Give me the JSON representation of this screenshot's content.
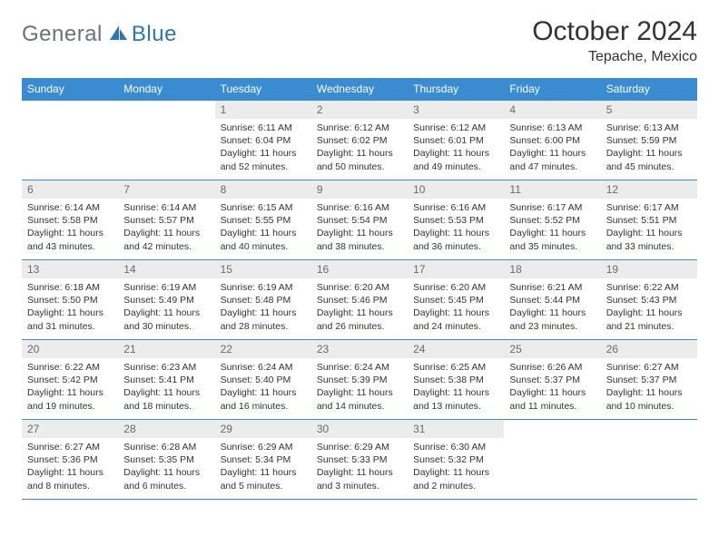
{
  "logo": {
    "word1": "General",
    "word2": "Blue"
  },
  "title": "October 2024",
  "location": "Tepache, Mexico",
  "colors": {
    "header_bg": "#3a8bd0",
    "header_fg": "#ffffff",
    "daynum_bg": "#ececec",
    "daynum_fg": "#6a6a6a",
    "border": "#3a8bd0",
    "logo_gray": "#6b7278",
    "logo_blue": "#2e75b6"
  },
  "weekdays": [
    "Sunday",
    "Monday",
    "Tuesday",
    "Wednesday",
    "Thursday",
    "Friday",
    "Saturday"
  ],
  "weeks": [
    [
      null,
      null,
      {
        "n": "1",
        "sr": "6:11 AM",
        "ss": "6:04 PM",
        "dl": "11 hours and 52 minutes."
      },
      {
        "n": "2",
        "sr": "6:12 AM",
        "ss": "6:02 PM",
        "dl": "11 hours and 50 minutes."
      },
      {
        "n": "3",
        "sr": "6:12 AM",
        "ss": "6:01 PM",
        "dl": "11 hours and 49 minutes."
      },
      {
        "n": "4",
        "sr": "6:13 AM",
        "ss": "6:00 PM",
        "dl": "11 hours and 47 minutes."
      },
      {
        "n": "5",
        "sr": "6:13 AM",
        "ss": "5:59 PM",
        "dl": "11 hours and 45 minutes."
      }
    ],
    [
      {
        "n": "6",
        "sr": "6:14 AM",
        "ss": "5:58 PM",
        "dl": "11 hours and 43 minutes."
      },
      {
        "n": "7",
        "sr": "6:14 AM",
        "ss": "5:57 PM",
        "dl": "11 hours and 42 minutes."
      },
      {
        "n": "8",
        "sr": "6:15 AM",
        "ss": "5:55 PM",
        "dl": "11 hours and 40 minutes."
      },
      {
        "n": "9",
        "sr": "6:16 AM",
        "ss": "5:54 PM",
        "dl": "11 hours and 38 minutes."
      },
      {
        "n": "10",
        "sr": "6:16 AM",
        "ss": "5:53 PM",
        "dl": "11 hours and 36 minutes."
      },
      {
        "n": "11",
        "sr": "6:17 AM",
        "ss": "5:52 PM",
        "dl": "11 hours and 35 minutes."
      },
      {
        "n": "12",
        "sr": "6:17 AM",
        "ss": "5:51 PM",
        "dl": "11 hours and 33 minutes."
      }
    ],
    [
      {
        "n": "13",
        "sr": "6:18 AM",
        "ss": "5:50 PM",
        "dl": "11 hours and 31 minutes."
      },
      {
        "n": "14",
        "sr": "6:19 AM",
        "ss": "5:49 PM",
        "dl": "11 hours and 30 minutes."
      },
      {
        "n": "15",
        "sr": "6:19 AM",
        "ss": "5:48 PM",
        "dl": "11 hours and 28 minutes."
      },
      {
        "n": "16",
        "sr": "6:20 AM",
        "ss": "5:46 PM",
        "dl": "11 hours and 26 minutes."
      },
      {
        "n": "17",
        "sr": "6:20 AM",
        "ss": "5:45 PM",
        "dl": "11 hours and 24 minutes."
      },
      {
        "n": "18",
        "sr": "6:21 AM",
        "ss": "5:44 PM",
        "dl": "11 hours and 23 minutes."
      },
      {
        "n": "19",
        "sr": "6:22 AM",
        "ss": "5:43 PM",
        "dl": "11 hours and 21 minutes."
      }
    ],
    [
      {
        "n": "20",
        "sr": "6:22 AM",
        "ss": "5:42 PM",
        "dl": "11 hours and 19 minutes."
      },
      {
        "n": "21",
        "sr": "6:23 AM",
        "ss": "5:41 PM",
        "dl": "11 hours and 18 minutes."
      },
      {
        "n": "22",
        "sr": "6:24 AM",
        "ss": "5:40 PM",
        "dl": "11 hours and 16 minutes."
      },
      {
        "n": "23",
        "sr": "6:24 AM",
        "ss": "5:39 PM",
        "dl": "11 hours and 14 minutes."
      },
      {
        "n": "24",
        "sr": "6:25 AM",
        "ss": "5:38 PM",
        "dl": "11 hours and 13 minutes."
      },
      {
        "n": "25",
        "sr": "6:26 AM",
        "ss": "5:37 PM",
        "dl": "11 hours and 11 minutes."
      },
      {
        "n": "26",
        "sr": "6:27 AM",
        "ss": "5:37 PM",
        "dl": "11 hours and 10 minutes."
      }
    ],
    [
      {
        "n": "27",
        "sr": "6:27 AM",
        "ss": "5:36 PM",
        "dl": "11 hours and 8 minutes."
      },
      {
        "n": "28",
        "sr": "6:28 AM",
        "ss": "5:35 PM",
        "dl": "11 hours and 6 minutes."
      },
      {
        "n": "29",
        "sr": "6:29 AM",
        "ss": "5:34 PM",
        "dl": "11 hours and 5 minutes."
      },
      {
        "n": "30",
        "sr": "6:29 AM",
        "ss": "5:33 PM",
        "dl": "11 hours and 3 minutes."
      },
      {
        "n": "31",
        "sr": "6:30 AM",
        "ss": "5:32 PM",
        "dl": "11 hours and 2 minutes."
      },
      null,
      null
    ]
  ],
  "labels": {
    "sunrise": "Sunrise:",
    "sunset": "Sunset:",
    "daylight": "Daylight:"
  }
}
